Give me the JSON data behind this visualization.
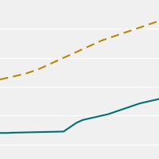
{
  "line1": {
    "x": [
      0,
      1,
      2,
      3,
      4,
      5,
      6,
      7,
      8,
      9,
      10,
      11,
      12,
      13,
      14,
      15,
      16,
      17,
      18,
      19,
      20,
      21,
      22,
      23,
      24,
      25
    ],
    "y": [
      55,
      56,
      57,
      58,
      59,
      60.5,
      62,
      64,
      66,
      68,
      70,
      72,
      74,
      76,
      78,
      80,
      82,
      83.5,
      85,
      86.5,
      88,
      89.5,
      91,
      92.5,
      94,
      95.5
    ],
    "color": "#b8860b",
    "linewidth": 1.5,
    "dash_pattern": [
      5,
      3
    ]
  },
  "line2": {
    "x": [
      0,
      1,
      2,
      3,
      4,
      5,
      6,
      7,
      8,
      9,
      10,
      11,
      12,
      13,
      14,
      15,
      16,
      17,
      18,
      19,
      20,
      21,
      22,
      23,
      24,
      25
    ],
    "y": [
      18,
      18,
      18.2,
      18.3,
      18.4,
      18.5,
      18.6,
      18.7,
      18.8,
      18.9,
      19.0,
      22.0,
      25.0,
      27.0,
      28.0,
      29.0,
      30.0,
      31.0,
      32.5,
      34.0,
      35.5,
      37.0,
      38.5,
      39.5,
      40.5,
      41.5
    ],
    "color": "#007070",
    "linewidth": 1.5
  },
  "background_color": "#f0f0f0",
  "grid_color": "#ffffff",
  "grid_linewidth": 1.0,
  "ylim": [
    0,
    110
  ],
  "xlim": [
    0,
    25
  ],
  "yticks": [
    10,
    30,
    50,
    70,
    90
  ]
}
